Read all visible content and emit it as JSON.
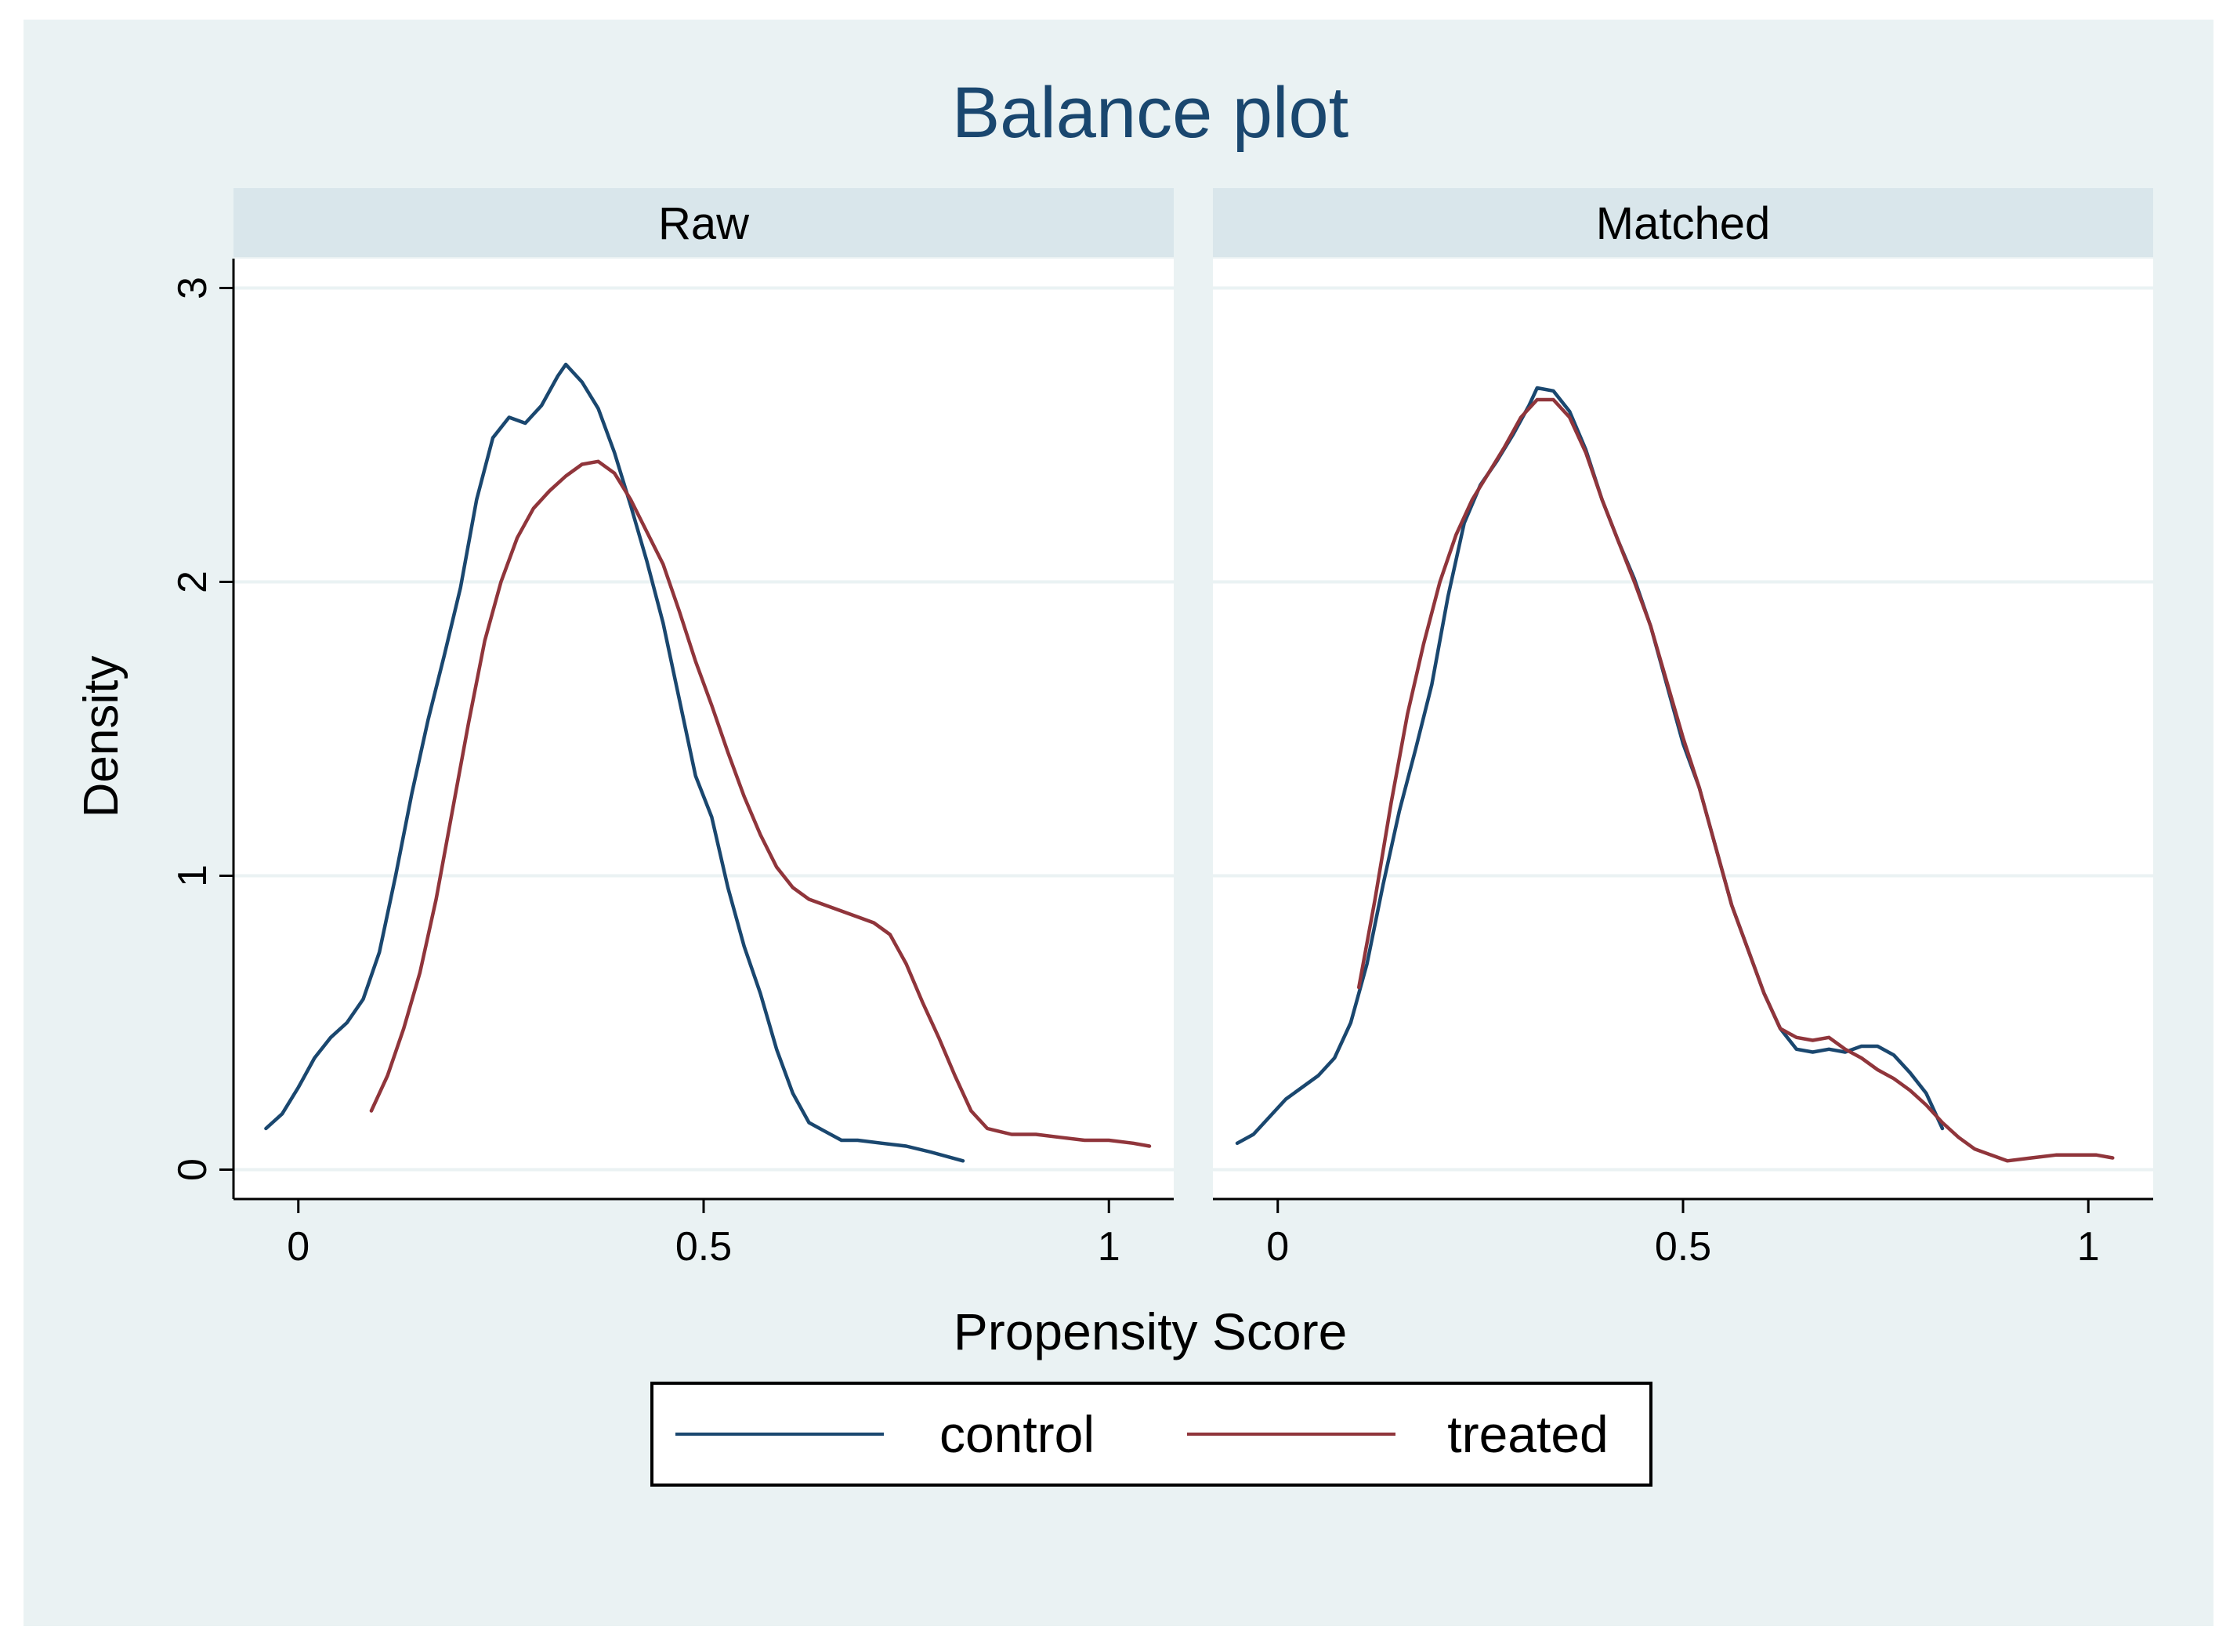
{
  "colors": {
    "page_background": "#ffffff",
    "figure_background": "#eaf2f3",
    "plot_background": "#ffffff",
    "strip_background": "#d9e6eb",
    "gridline": "#eaf2f3",
    "axis": "#000000",
    "text": "#000000",
    "title_text": "#1a476f",
    "control": "#1a476f",
    "treated": "#90353b"
  },
  "chart_data": {
    "type": "line",
    "title": "Balance plot",
    "xlabel": "Propensity Score",
    "ylabel": "Density",
    "xlim": [
      -0.08,
      1.08
    ],
    "ylim": [
      -0.1,
      3.1
    ],
    "x_ticks": [
      0,
      0.5,
      1
    ],
    "x_tick_labels": [
      "0",
      "0.5",
      "1"
    ],
    "y_ticks": [
      0,
      1,
      2,
      3
    ],
    "y_tick_labels": [
      "0",
      "1",
      "2",
      "3"
    ],
    "grid": "horizontal",
    "legend": {
      "position": "bottom",
      "entries": [
        "control",
        "treated"
      ]
    },
    "panels": [
      {
        "name": "Raw",
        "series": [
          {
            "name": "control",
            "color": "#1a476f",
            "points": [
              [
                -0.04,
                0.14
              ],
              [
                -0.02,
                0.19
              ],
              [
                0.0,
                0.28
              ],
              [
                0.02,
                0.38
              ],
              [
                0.04,
                0.45
              ],
              [
                0.06,
                0.5
              ],
              [
                0.08,
                0.58
              ],
              [
                0.1,
                0.74
              ],
              [
                0.12,
                1.0
              ],
              [
                0.14,
                1.28
              ],
              [
                0.16,
                1.53
              ],
              [
                0.18,
                1.75
              ],
              [
                0.2,
                1.98
              ],
              [
                0.22,
                2.28
              ],
              [
                0.24,
                2.49
              ],
              [
                0.26,
                2.56
              ],
              [
                0.28,
                2.54
              ],
              [
                0.3,
                2.6
              ],
              [
                0.32,
                2.7
              ],
              [
                0.33,
                2.74
              ],
              [
                0.35,
                2.68
              ],
              [
                0.37,
                2.59
              ],
              [
                0.39,
                2.44
              ],
              [
                0.41,
                2.26
              ],
              [
                0.43,
                2.07
              ],
              [
                0.45,
                1.86
              ],
              [
                0.47,
                1.6
              ],
              [
                0.49,
                1.34
              ],
              [
                0.51,
                1.2
              ],
              [
                0.53,
                0.96
              ],
              [
                0.55,
                0.76
              ],
              [
                0.57,
                0.6
              ],
              [
                0.59,
                0.41
              ],
              [
                0.61,
                0.26
              ],
              [
                0.63,
                0.16
              ],
              [
                0.65,
                0.13
              ],
              [
                0.67,
                0.1
              ],
              [
                0.69,
                0.1
              ],
              [
                0.72,
                0.09
              ],
              [
                0.75,
                0.08
              ],
              [
                0.78,
                0.06
              ],
              [
                0.82,
                0.03
              ]
            ]
          },
          {
            "name": "treated",
            "color": "#90353b",
            "points": [
              [
                0.09,
                0.2
              ],
              [
                0.11,
                0.32
              ],
              [
                0.13,
                0.48
              ],
              [
                0.15,
                0.67
              ],
              [
                0.17,
                0.92
              ],
              [
                0.19,
                1.22
              ],
              [
                0.21,
                1.52
              ],
              [
                0.23,
                1.8
              ],
              [
                0.25,
                2.0
              ],
              [
                0.27,
                2.15
              ],
              [
                0.29,
                2.25
              ],
              [
                0.31,
                2.31
              ],
              [
                0.33,
                2.36
              ],
              [
                0.35,
                2.4
              ],
              [
                0.37,
                2.41
              ],
              [
                0.39,
                2.37
              ],
              [
                0.41,
                2.28
              ],
              [
                0.43,
                2.17
              ],
              [
                0.45,
                2.06
              ],
              [
                0.47,
                1.9
              ],
              [
                0.49,
                1.73
              ],
              [
                0.51,
                1.58
              ],
              [
                0.53,
                1.42
              ],
              [
                0.55,
                1.27
              ],
              [
                0.57,
                1.14
              ],
              [
                0.59,
                1.03
              ],
              [
                0.61,
                0.96
              ],
              [
                0.63,
                0.92
              ],
              [
                0.65,
                0.9
              ],
              [
                0.67,
                0.88
              ],
              [
                0.69,
                0.86
              ],
              [
                0.71,
                0.84
              ],
              [
                0.73,
                0.8
              ],
              [
                0.75,
                0.7
              ],
              [
                0.77,
                0.57
              ],
              [
                0.79,
                0.45
              ],
              [
                0.81,
                0.32
              ],
              [
                0.83,
                0.2
              ],
              [
                0.85,
                0.14
              ],
              [
                0.88,
                0.12
              ],
              [
                0.91,
                0.12
              ],
              [
                0.94,
                0.11
              ],
              [
                0.97,
                0.1
              ],
              [
                1.0,
                0.1
              ],
              [
                1.03,
                0.09
              ],
              [
                1.05,
                0.08
              ]
            ]
          }
        ]
      },
      {
        "name": "Matched",
        "series": [
          {
            "name": "control",
            "color": "#1a476f",
            "points": [
              [
                -0.05,
                0.09
              ],
              [
                -0.03,
                0.12
              ],
              [
                -0.01,
                0.18
              ],
              [
                0.01,
                0.24
              ],
              [
                0.03,
                0.28
              ],
              [
                0.05,
                0.32
              ],
              [
                0.07,
                0.38
              ],
              [
                0.09,
                0.5
              ],
              [
                0.11,
                0.7
              ],
              [
                0.13,
                0.97
              ],
              [
                0.15,
                1.22
              ],
              [
                0.17,
                1.43
              ],
              [
                0.19,
                1.65
              ],
              [
                0.21,
                1.95
              ],
              [
                0.23,
                2.2
              ],
              [
                0.25,
                2.33
              ],
              [
                0.27,
                2.41
              ],
              [
                0.29,
                2.5
              ],
              [
                0.31,
                2.6
              ],
              [
                0.32,
                2.66
              ],
              [
                0.34,
                2.65
              ],
              [
                0.36,
                2.58
              ],
              [
                0.38,
                2.45
              ],
              [
                0.4,
                2.28
              ],
              [
                0.42,
                2.14
              ],
              [
                0.44,
                2.01
              ],
              [
                0.46,
                1.85
              ],
              [
                0.48,
                1.65
              ],
              [
                0.5,
                1.45
              ],
              [
                0.52,
                1.3
              ],
              [
                0.54,
                1.1
              ],
              [
                0.56,
                0.9
              ],
              [
                0.58,
                0.75
              ],
              [
                0.6,
                0.6
              ],
              [
                0.62,
                0.48
              ],
              [
                0.64,
                0.41
              ],
              [
                0.66,
                0.4
              ],
              [
                0.68,
                0.41
              ],
              [
                0.7,
                0.4
              ],
              [
                0.72,
                0.42
              ],
              [
                0.74,
                0.42
              ],
              [
                0.76,
                0.39
              ],
              [
                0.78,
                0.33
              ],
              [
                0.8,
                0.26
              ],
              [
                0.82,
                0.14
              ]
            ]
          },
          {
            "name": "treated",
            "color": "#90353b",
            "points": [
              [
                0.1,
                0.62
              ],
              [
                0.12,
                0.92
              ],
              [
                0.14,
                1.25
              ],
              [
                0.16,
                1.55
              ],
              [
                0.18,
                1.79
              ],
              [
                0.2,
                2.0
              ],
              [
                0.22,
                2.16
              ],
              [
                0.24,
                2.28
              ],
              [
                0.26,
                2.37
              ],
              [
                0.28,
                2.46
              ],
              [
                0.3,
                2.56
              ],
              [
                0.32,
                2.62
              ],
              [
                0.34,
                2.62
              ],
              [
                0.36,
                2.56
              ],
              [
                0.38,
                2.44
              ],
              [
                0.4,
                2.28
              ],
              [
                0.42,
                2.14
              ],
              [
                0.44,
                2.0
              ],
              [
                0.46,
                1.85
              ],
              [
                0.48,
                1.66
              ],
              [
                0.5,
                1.47
              ],
              [
                0.52,
                1.3
              ],
              [
                0.54,
                1.1
              ],
              [
                0.56,
                0.9
              ],
              [
                0.58,
                0.75
              ],
              [
                0.6,
                0.6
              ],
              [
                0.62,
                0.48
              ],
              [
                0.64,
                0.45
              ],
              [
                0.66,
                0.44
              ],
              [
                0.68,
                0.45
              ],
              [
                0.7,
                0.41
              ],
              [
                0.72,
                0.38
              ],
              [
                0.74,
                0.34
              ],
              [
                0.76,
                0.31
              ],
              [
                0.78,
                0.27
              ],
              [
                0.8,
                0.22
              ],
              [
                0.82,
                0.16
              ],
              [
                0.84,
                0.11
              ],
              [
                0.86,
                0.07
              ],
              [
                0.88,
                0.05
              ],
              [
                0.9,
                0.03
              ],
              [
                0.93,
                0.04
              ],
              [
                0.96,
                0.05
              ],
              [
                0.99,
                0.05
              ],
              [
                1.01,
                0.05
              ],
              [
                1.03,
                0.04
              ]
            ]
          }
        ]
      }
    ]
  }
}
